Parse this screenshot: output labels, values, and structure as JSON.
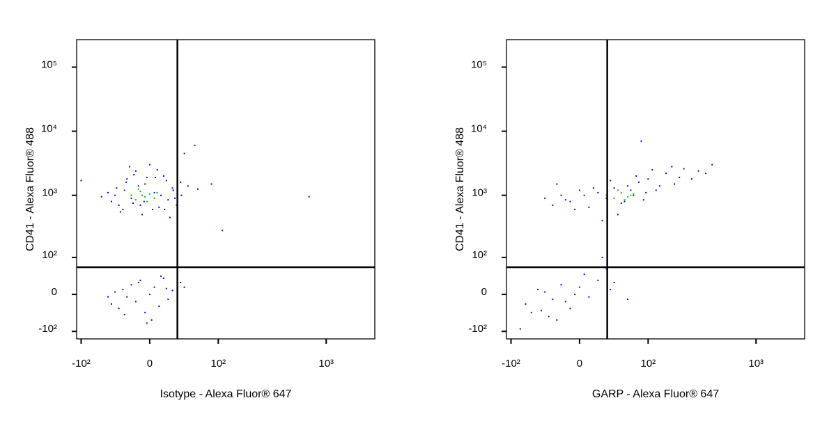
{
  "chart_data": [
    {
      "type": "scatter",
      "xlabel": "Isotype - Alexa Fluor® 647",
      "ylabel": "CD41 - Alexa Fluor® 488",
      "xscale": "biexponential",
      "yscale": "biexponential",
      "xlim": [
        -111,
        2750
      ],
      "ylim": [
        -135,
        268000
      ],
      "xticks": [
        {
          "value": -100,
          "label": "-10²"
        },
        0,
        {
          "value": 100,
          "label": "10²"
        },
        {
          "value": 1000,
          "label": "10³"
        }
      ],
      "yticks": [
        {
          "value": -100,
          "label": "-10²"
        },
        0,
        {
          "value": 100,
          "label": "10²"
        },
        {
          "value": 1000,
          "label": "10³"
        },
        {
          "value": 10000,
          "label": "10⁴"
        },
        {
          "value": 100000,
          "label": "10⁵"
        }
      ],
      "gates": {
        "x": 31,
        "y": 65
      },
      "series": [
        {
          "color": "#0000ff",
          "x": [
            -45,
            -38,
            -30,
            -25,
            -20,
            -15,
            -10,
            -5,
            0,
            5,
            10,
            15,
            20,
            25,
            30,
            35,
            -40,
            -33,
            -28,
            -22,
            -18,
            -12,
            -8,
            -3,
            3,
            8,
            12,
            18,
            22,
            28,
            -35,
            -26,
            -17,
            -6,
            6,
            16,
            26,
            36,
            -50,
            45,
            60,
            85,
            -100,
            700,
            110,
            -60,
            40,
            55,
            -45,
            -40,
            -35,
            -30,
            -25,
            -20,
            -15,
            -10,
            -5,
            0,
            5,
            10,
            15,
            20,
            25,
            -28,
            -12,
            2,
            12,
            -50,
            -3,
            18,
            35,
            40
          ],
          "values": [
            800,
            1300,
            600,
            1800,
            900,
            2400,
            700,
            1500,
            3000,
            1100,
            650,
            2000,
            850,
            1300,
            700,
            1600,
            1000,
            550,
            1200,
            2800,
            750,
            1400,
            500,
            1900,
            600,
            2500,
            1000,
            1700,
            450,
            900,
            700,
            1600,
            2100,
            800,
            1900,
            600,
            1200,
            1000,
            1100,
            1400,
            1250,
            1500,
            1700,
            950,
            280,
            950,
            4500,
            6000,
            -20,
            5,
            -30,
            10,
            -5,
            20,
            -15,
            30,
            -40,
            0,
            15,
            -25,
            35,
            -10,
            8,
            -45,
            25,
            -60,
            40,
            -5,
            -70,
            12,
            25,
            15
          ]
        },
        {
          "color": "#00c000",
          "x": [
            -20,
            -15,
            -10,
            -5,
            0,
            5,
            -12,
            -3,
            8,
            -8
          ],
          "values": [
            1000,
            850,
            1150,
            950,
            1050,
            900,
            1250,
            800,
            1100,
            1000
          ]
        }
      ]
    },
    {
      "type": "scatter",
      "xlabel": "GARP - Alexa Fluor® 647",
      "ylabel": "CD41 - Alexa Fluor® 488",
      "xscale": "biexponential",
      "yscale": "biexponential",
      "xlim": [
        -111,
        2750
      ],
      "ylim": [
        -135,
        268000
      ],
      "xticks": [
        {
          "value": -100,
          "label": "-10²"
        },
        0,
        {
          "value": 100,
          "label": "10²"
        },
        {
          "value": 1000,
          "label": "10³"
        }
      ],
      "yticks": [
        {
          "value": -100,
          "label": "-10²"
        },
        0,
        {
          "value": 100,
          "label": "10²"
        },
        {
          "value": 1000,
          "label": "10³"
        },
        {
          "value": 10000,
          "label": "10⁴"
        },
        {
          "value": 100000,
          "label": "10⁵"
        }
      ],
      "gates": {
        "x": 31,
        "y": 65
      },
      "series": [
        {
          "color": "#0000ff",
          "x": [
            -40,
            -30,
            -20,
            -10,
            0,
            10,
            20,
            30,
            40,
            50,
            60,
            70,
            80,
            90,
            100,
            120,
            150,
            180,
            220,
            260,
            300,
            400,
            -25,
            -5,
            15,
            35,
            55,
            75,
            95,
            130,
            170,
            45,
            65,
            85,
            25,
            5,
            -15,
            110,
            200,
            350,
            -70,
            -60,
            -50,
            -40,
            -30,
            -20,
            -10,
            0,
            10,
            20,
            30,
            -35,
            -15,
            5,
            -45,
            -25,
            -5,
            40,
            60,
            25,
            35,
            -80
          ],
          "values": [
            900,
            700,
            1000,
            800,
            1200,
            650,
            1100,
            900,
            1300,
            750,
            1400,
            1000,
            1600,
            850,
            1800,
            1200,
            2200,
            1500,
            2600,
            1800,
            2400,
            3000,
            1500,
            600,
            1300,
            1700,
            800,
            2000,
            1100,
            1400,
            2800,
            500,
            1200,
            7000,
            400,
            1000,
            850,
            2500,
            1900,
            2200,
            -20,
            -40,
            10,
            5,
            -10,
            20,
            -30,
            15,
            -5,
            30,
            60,
            -50,
            -15,
            45,
            -35,
            -60,
            0,
            25,
            -10,
            100,
            10,
            -90
          ]
        },
        {
          "color": "#00c000",
          "x": [
            30,
            40,
            50,
            60,
            70,
            45,
            55,
            65
          ],
          "values": [
            1000,
            900,
            1100,
            950,
            1050,
            1200,
            850,
            1000
          ]
        }
      ]
    }
  ]
}
